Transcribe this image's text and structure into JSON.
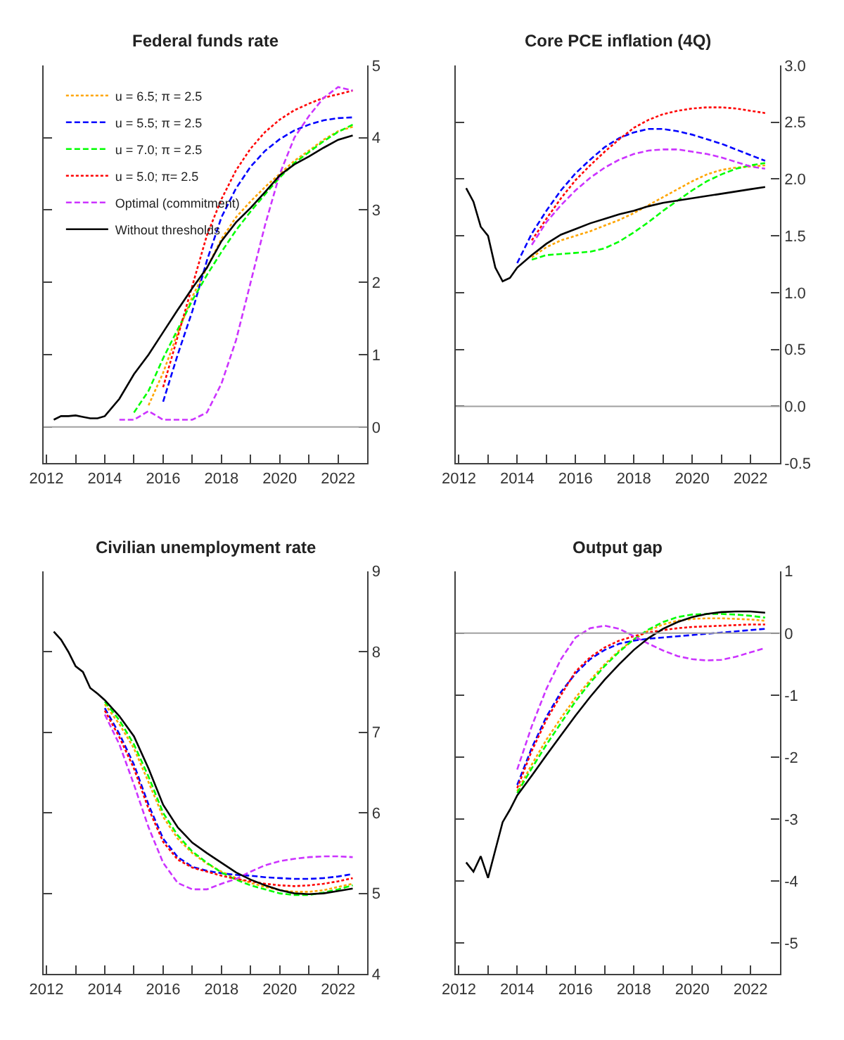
{
  "chart_data": [
    {
      "type": "line",
      "title": "Federal funds rate",
      "legend": "top left",
      "x": [
        2012.25,
        2012.5,
        2012.75,
        2013.0,
        2013.25,
        2013.5,
        2013.75,
        2014.0,
        2014.5,
        2015.0,
        2015.5,
        2016.0,
        2016.5,
        2017.0,
        2017.5,
        2018.0,
        2018.5,
        2019.0,
        2019.5,
        2020.0,
        2020.5,
        2021.0,
        2021.5,
        2022.0,
        2022.5
      ],
      "xlim": [
        2011.9,
        2023.0
      ],
      "xticks": [
        2012,
        {
          "value": 2013,
          "label": null
        },
        2014,
        {
          "value": 2015,
          "label": null
        },
        2016,
        {
          "value": 2017,
          "label": null
        },
        2018,
        {
          "value": 2019,
          "label": null
        },
        2020,
        {
          "value": 2021,
          "label": null
        },
        2022
      ],
      "ylim": [
        -0.5,
        5
      ],
      "yticks": [
        0,
        1,
        2,
        3,
        4,
        5
      ],
      "ref_lines": [
        {
          "axis": "y",
          "value": 0,
          "color": "#a0a0a0"
        }
      ],
      "series": [
        {
          "name": "u = 6.5; π = 2.5",
          "color": "#ffa500",
          "line_style": "dotted",
          "values": [
            null,
            null,
            null,
            null,
            null,
            null,
            null,
            null,
            null,
            null,
            0.3,
            0.75,
            1.3,
            1.8,
            2.2,
            2.6,
            2.9,
            3.12,
            3.32,
            3.5,
            3.68,
            3.82,
            3.97,
            4.09,
            4.15
          ]
        },
        {
          "name": "u = 5.5; π = 2.5",
          "color": "#0000ff",
          "line_style": "dashed",
          "values": [
            null,
            null,
            null,
            null,
            null,
            null,
            null,
            null,
            null,
            null,
            null,
            0.35,
            1.0,
            1.6,
            2.3,
            2.9,
            3.3,
            3.6,
            3.82,
            3.98,
            4.1,
            4.18,
            4.24,
            4.27,
            4.28
          ]
        },
        {
          "name": "u = 7.0; π = 2.5",
          "color": "#00ff00",
          "line_style": "dashed",
          "values": [
            null,
            null,
            null,
            null,
            null,
            null,
            null,
            null,
            null,
            0.2,
            0.5,
            0.95,
            1.35,
            1.75,
            2.1,
            2.42,
            2.72,
            2.98,
            3.22,
            3.45,
            3.65,
            3.8,
            3.95,
            4.08,
            4.18
          ]
        },
        {
          "name": "u = 5.0; π= 2.5",
          "color": "#ff0000",
          "line_style": "dotted",
          "values": [
            null,
            null,
            null,
            null,
            null,
            null,
            null,
            null,
            null,
            null,
            null,
            0.55,
            1.25,
            1.95,
            2.65,
            3.15,
            3.55,
            3.85,
            4.08,
            4.25,
            4.38,
            4.47,
            4.55,
            4.6,
            4.65
          ]
        },
        {
          "name": "Optimal (commitment)",
          "color": "#cc33ff",
          "line_style": "dashed",
          "values": [
            null,
            null,
            null,
            null,
            null,
            null,
            null,
            null,
            0.1,
            0.1,
            0.22,
            0.1,
            0.1,
            0.1,
            0.2,
            0.6,
            1.2,
            2.0,
            2.8,
            3.5,
            4.0,
            4.3,
            4.55,
            4.7,
            4.65
          ]
        },
        {
          "name": "Without thresholds",
          "color": "#000000",
          "line_style": "solid",
          "values": [
            0.1,
            0.15,
            0.15,
            0.16,
            0.14,
            0.12,
            0.12,
            0.15,
            0.39,
            0.73,
            1.0,
            1.31,
            1.62,
            1.92,
            2.2,
            2.57,
            2.83,
            3.03,
            3.25,
            3.48,
            3.63,
            3.74,
            3.86,
            3.97,
            4.03
          ]
        }
      ]
    },
    {
      "type": "line",
      "title": "Core PCE inflation (4Q)",
      "x": [
        2012.25,
        2012.5,
        2012.75,
        2013.0,
        2013.25,
        2013.5,
        2013.75,
        2014.0,
        2014.5,
        2015.0,
        2015.5,
        2016.0,
        2016.5,
        2017.0,
        2017.5,
        2018.0,
        2018.5,
        2019.0,
        2019.5,
        2020.0,
        2020.5,
        2021.0,
        2021.5,
        2022.0,
        2022.5
      ],
      "xlim": [
        2011.9,
        2023.0
      ],
      "xticks": [
        2012,
        {
          "value": 2013,
          "label": null
        },
        2014,
        {
          "value": 2015,
          "label": null
        },
        2016,
        {
          "value": 2017,
          "label": null
        },
        2018,
        {
          "value": 2019,
          "label": null
        },
        2020,
        {
          "value": 2021,
          "label": null
        },
        2022
      ],
      "ylim": [
        -0.5,
        3.0
      ],
      "yticks": [
        -0.5,
        {
          "value": 0,
          "label": "0.0"
        },
        0.5,
        {
          "value": 1,
          "label": "1.0"
        },
        1.5,
        {
          "value": 2,
          "label": "2.0"
        },
        2.5,
        {
          "value": 3,
          "label": "3.0"
        }
      ],
      "ref_lines": [
        {
          "axis": "y",
          "value": 0,
          "color": "#a0a0a0"
        }
      ],
      "series": [
        {
          "color": "#ffa500",
          "line_style": "dotted",
          "values": [
            null,
            null,
            null,
            null,
            null,
            null,
            null,
            null,
            1.31,
            1.4,
            1.46,
            1.5,
            1.54,
            1.59,
            1.64,
            1.7,
            1.77,
            1.84,
            1.91,
            1.98,
            2.04,
            2.08,
            2.1,
            2.11,
            2.12
          ]
        },
        {
          "color": "#0000ff",
          "line_style": "dashed",
          "values": [
            null,
            null,
            null,
            null,
            null,
            null,
            null,
            1.26,
            1.52,
            1.72,
            1.9,
            2.05,
            2.17,
            2.28,
            2.36,
            2.41,
            2.44,
            2.44,
            2.42,
            2.39,
            2.35,
            2.31,
            2.26,
            2.21,
            2.16
          ]
        },
        {
          "color": "#00ff00",
          "line_style": "dashed",
          "values": [
            null,
            null,
            null,
            null,
            null,
            null,
            null,
            null,
            1.29,
            1.33,
            1.34,
            1.35,
            1.36,
            1.39,
            1.45,
            1.53,
            1.62,
            1.72,
            1.81,
            1.9,
            1.98,
            2.04,
            2.09,
            2.12,
            2.14
          ]
        },
        {
          "color": "#ff0000",
          "line_style": "dotted",
          "values": [
            null,
            null,
            null,
            null,
            null,
            null,
            null,
            null,
            1.46,
            1.65,
            1.83,
            1.99,
            2.12,
            2.24,
            2.35,
            2.45,
            2.52,
            2.57,
            2.6,
            2.62,
            2.63,
            2.63,
            2.62,
            2.6,
            2.58
          ]
        },
        {
          "color": "#cc33ff",
          "line_style": "dashed",
          "values": [
            null,
            null,
            null,
            null,
            null,
            null,
            null,
            null,
            1.42,
            1.62,
            1.77,
            1.9,
            2.01,
            2.1,
            2.17,
            2.22,
            2.25,
            2.26,
            2.26,
            2.24,
            2.22,
            2.19,
            2.15,
            2.11,
            2.09
          ]
        },
        {
          "color": "#000000",
          "line_style": "solid",
          "values": [
            1.92,
            1.8,
            1.58,
            1.5,
            1.22,
            1.1,
            1.13,
            1.22,
            1.33,
            1.43,
            1.51,
            1.56,
            1.61,
            1.65,
            1.69,
            1.72,
            1.76,
            1.79,
            1.81,
            1.83,
            1.85,
            1.87,
            1.89,
            1.91,
            1.93
          ]
        }
      ]
    },
    {
      "type": "line",
      "title": "Civilian unemployment rate",
      "x": [
        2012.25,
        2012.5,
        2012.75,
        2013.0,
        2013.25,
        2013.5,
        2013.75,
        2014.0,
        2014.5,
        2015.0,
        2015.5,
        2016.0,
        2016.5,
        2017.0,
        2017.5,
        2018.0,
        2018.5,
        2019.0,
        2019.5,
        2020.0,
        2020.5,
        2021.0,
        2021.5,
        2022.0,
        2022.5
      ],
      "xlim": [
        2011.9,
        2023.0
      ],
      "xticks": [
        2012,
        {
          "value": 2013,
          "label": null
        },
        2014,
        {
          "value": 2015,
          "label": null
        },
        2016,
        {
          "value": 2017,
          "label": null
        },
        2018,
        {
          "value": 2019,
          "label": null
        },
        2020,
        {
          "value": 2021,
          "label": null
        },
        2022
      ],
      "ylim": [
        4,
        9
      ],
      "yticks": [
        4,
        5,
        6,
        7,
        8,
        9
      ],
      "series": [
        {
          "color": "#ffa500",
          "line_style": "dotted",
          "values": [
            null,
            null,
            null,
            null,
            null,
            null,
            null,
            7.35,
            7.1,
            6.8,
            6.38,
            5.95,
            5.68,
            5.5,
            5.37,
            5.27,
            5.19,
            5.13,
            5.08,
            5.04,
            5.02,
            5.02,
            5.04,
            5.08,
            5.12
          ]
        },
        {
          "color": "#0000ff",
          "line_style": "dashed",
          "values": [
            null,
            null,
            null,
            null,
            null,
            null,
            null,
            7.3,
            6.98,
            6.6,
            6.1,
            5.68,
            5.45,
            5.33,
            5.28,
            5.25,
            5.23,
            5.22,
            5.2,
            5.19,
            5.18,
            5.18,
            5.19,
            5.21,
            5.24
          ]
        },
        {
          "color": "#00ff00",
          "line_style": "dashed",
          "values": [
            null,
            null,
            null,
            null,
            null,
            null,
            null,
            7.38,
            7.15,
            6.85,
            6.45,
            6.0,
            5.72,
            5.52,
            5.38,
            5.26,
            5.17,
            5.1,
            5.05,
            5.0,
            4.98,
            4.98,
            5.01,
            5.05,
            5.1
          ]
        },
        {
          "color": "#ff0000",
          "line_style": "dotted",
          "values": [
            null,
            null,
            null,
            null,
            null,
            null,
            null,
            7.27,
            6.94,
            6.55,
            6.05,
            5.64,
            5.42,
            5.32,
            5.27,
            5.22,
            5.18,
            5.15,
            5.12,
            5.1,
            5.09,
            5.1,
            5.12,
            5.15,
            5.19
          ]
        },
        {
          "color": "#cc33ff",
          "line_style": "dashed",
          "values": [
            null,
            null,
            null,
            null,
            null,
            null,
            null,
            7.22,
            6.85,
            6.35,
            5.82,
            5.38,
            5.13,
            5.05,
            5.05,
            5.12,
            5.18,
            5.27,
            5.35,
            5.4,
            5.43,
            5.45,
            5.46,
            5.46,
            5.45
          ]
        },
        {
          "color": "#000000",
          "line_style": "solid",
          "values": [
            8.25,
            8.15,
            8.0,
            7.82,
            7.75,
            7.55,
            7.48,
            7.4,
            7.2,
            6.95,
            6.55,
            6.1,
            5.82,
            5.63,
            5.5,
            5.38,
            5.26,
            5.17,
            5.1,
            5.04,
            5.0,
            4.99,
            5.0,
            5.03,
            5.06
          ]
        }
      ]
    },
    {
      "type": "line",
      "title": "Output gap",
      "x": [
        2012.25,
        2012.5,
        2012.75,
        2013.0,
        2013.25,
        2013.5,
        2013.75,
        2014.0,
        2014.5,
        2015.0,
        2015.5,
        2016.0,
        2016.5,
        2017.0,
        2017.5,
        2018.0,
        2018.5,
        2019.0,
        2019.5,
        2020.0,
        2020.5,
        2021.0,
        2021.5,
        2022.0,
        2022.5
      ],
      "xlim": [
        2011.9,
        2023.0
      ],
      "xticks": [
        2012,
        {
          "value": 2013,
          "label": null
        },
        2014,
        {
          "value": 2015,
          "label": null
        },
        2016,
        {
          "value": 2017,
          "label": null
        },
        2018,
        {
          "value": 2019,
          "label": null
        },
        2020,
        {
          "value": 2021,
          "label": null
        },
        2022
      ],
      "ylim": [
        -5.5,
        1
      ],
      "yticks": [
        -5,
        -4,
        -3,
        -2,
        -1,
        0,
        1
      ],
      "ref_lines": [
        {
          "axis": "y",
          "value": 0,
          "color": "#a0a0a0"
        }
      ],
      "series": [
        {
          "color": "#ffa500",
          "line_style": "dotted",
          "values": [
            null,
            null,
            null,
            null,
            null,
            null,
            null,
            -2.55,
            -2.12,
            -1.72,
            -1.37,
            -1.04,
            -0.76,
            -0.5,
            -0.28,
            -0.1,
            0.04,
            0.14,
            0.2,
            0.23,
            0.24,
            0.24,
            0.23,
            0.22,
            0.2
          ]
        },
        {
          "color": "#0000ff",
          "line_style": "dashed",
          "values": [
            null,
            null,
            null,
            null,
            null,
            null,
            null,
            -2.45,
            -1.85,
            -1.35,
            -0.95,
            -0.65,
            -0.42,
            -0.27,
            -0.17,
            -0.12,
            -0.09,
            -0.07,
            -0.05,
            -0.03,
            -0.01,
            0.01,
            0.03,
            0.05,
            0.07
          ]
        },
        {
          "color": "#00ff00",
          "line_style": "dashed",
          "values": [
            null,
            null,
            null,
            null,
            null,
            null,
            null,
            -2.58,
            -2.18,
            -1.8,
            -1.45,
            -1.1,
            -0.8,
            -0.53,
            -0.3,
            -0.1,
            0.06,
            0.18,
            0.26,
            0.3,
            0.31,
            0.31,
            0.3,
            0.28,
            0.25
          ]
        },
        {
          "color": "#ff0000",
          "line_style": "dotted",
          "values": [
            null,
            null,
            null,
            null,
            null,
            null,
            null,
            -2.5,
            -1.9,
            -1.4,
            -1.0,
            -0.62,
            -0.39,
            -0.23,
            -0.12,
            -0.05,
            0.01,
            0.05,
            0.08,
            0.1,
            0.11,
            0.12,
            0.13,
            0.14,
            0.14
          ]
        },
        {
          "color": "#cc33ff",
          "line_style": "dashed",
          "values": [
            null,
            null,
            null,
            null,
            null,
            null,
            null,
            -2.2,
            -1.5,
            -0.9,
            -0.42,
            -0.07,
            0.08,
            0.12,
            0.07,
            -0.05,
            -0.17,
            -0.28,
            -0.37,
            -0.42,
            -0.44,
            -0.43,
            -0.38,
            -0.31,
            -0.24
          ]
        },
        {
          "color": "#000000",
          "line_style": "solid",
          "values": [
            -3.7,
            -3.85,
            -3.6,
            -3.95,
            -3.5,
            -3.05,
            -2.85,
            -2.62,
            -2.3,
            -1.97,
            -1.65,
            -1.33,
            -1.03,
            -0.75,
            -0.5,
            -0.27,
            -0.08,
            0.07,
            0.18,
            0.26,
            0.31,
            0.34,
            0.35,
            0.35,
            0.33
          ]
        }
      ]
    }
  ]
}
